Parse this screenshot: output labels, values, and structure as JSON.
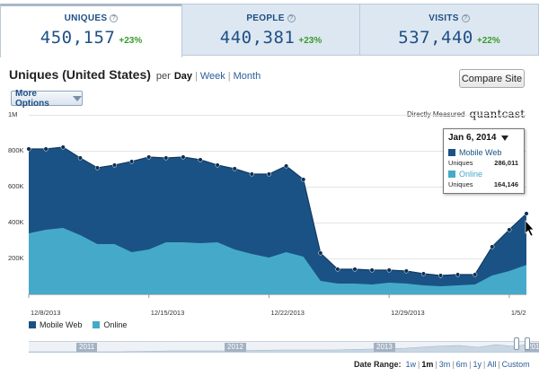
{
  "tabs": [
    {
      "label": "UNIQUES",
      "value": "450,157",
      "change": "+23%",
      "active": true
    },
    {
      "label": "PEOPLE",
      "value": "440,381",
      "change": "+23%",
      "active": false
    },
    {
      "label": "VISITS",
      "value": "537,440",
      "change": "+22%",
      "active": false
    }
  ],
  "header": {
    "title": "Uniques (United States)",
    "per": "per",
    "granularity": [
      "Day",
      "Week",
      "Month"
    ],
    "selected_granularity": "Day",
    "compare_button": "Compare Site",
    "more_options": "More Options",
    "directly_measured": "Directly Measured",
    "logo_text": "quantcast"
  },
  "chart_data": {
    "type": "area",
    "stacked": true,
    "y_tick_labels": [
      "1M",
      "800K",
      "600K",
      "400K",
      "200K"
    ],
    "y_ticks": [
      1000000,
      800000,
      600000,
      400000,
      200000
    ],
    "ylim": [
      0,
      1000000
    ],
    "x_tick_labels": [
      "12/8/2013",
      "12/15/2013",
      "12/22/2013",
      "12/29/2013",
      "1/5/2"
    ],
    "x": [
      "2013-12-08",
      "2013-12-09",
      "2013-12-10",
      "2013-12-11",
      "2013-12-12",
      "2013-12-13",
      "2013-12-14",
      "2013-12-15",
      "2013-12-16",
      "2013-12-17",
      "2013-12-18",
      "2013-12-19",
      "2013-12-20",
      "2013-12-21",
      "2013-12-22",
      "2013-12-23",
      "2013-12-24",
      "2013-12-25",
      "2013-12-26",
      "2013-12-27",
      "2013-12-28",
      "2013-12-29",
      "2013-12-30",
      "2013-12-31",
      "2014-01-01",
      "2014-01-02",
      "2014-01-03",
      "2014-01-04",
      "2014-01-05",
      "2014-01-06"
    ],
    "series": [
      {
        "name": "Online",
        "color": "#45aac9",
        "values": [
          340000,
          360000,
          370000,
          330000,
          280000,
          280000,
          235000,
          250000,
          290000,
          290000,
          285000,
          290000,
          250000,
          225000,
          205000,
          235000,
          210000,
          75000,
          60000,
          60000,
          55000,
          65000,
          60000,
          50000,
          45000,
          50000,
          55000,
          105000,
          130000,
          164146
        ]
      },
      {
        "name": "Mobile Web",
        "color": "#1b5286",
        "values": [
          470000,
          450000,
          450000,
          430000,
          425000,
          440000,
          505000,
          515000,
          470000,
          475000,
          465000,
          430000,
          450000,
          445000,
          465000,
          480000,
          430000,
          155000,
          80000,
          80000,
          80000,
          70000,
          70000,
          65000,
          60000,
          60000,
          55000,
          160000,
          230000,
          286011
        ]
      }
    ],
    "totals": [
      810000,
      810000,
      820000,
      760000,
      705000,
      720000,
      740000,
      765000,
      760000,
      765000,
      750000,
      720000,
      700000,
      670000,
      670000,
      715000,
      640000,
      230000,
      140000,
      140000,
      135000,
      135000,
      130000,
      115000,
      105000,
      110000,
      110000,
      265000,
      360000,
      450157
    ],
    "grid": true,
    "legend": "bottom-left"
  },
  "tooltip": {
    "date": "Jan 6, 2014",
    "rows": [
      {
        "label": "Mobile Web",
        "metric": "Uniques",
        "value": "286,011",
        "color": "#1b5286"
      },
      {
        "label": "Online",
        "metric": "Uniques",
        "value": "164,146",
        "color": "#45aac9"
      }
    ]
  },
  "legend": [
    {
      "label": "Mobile Web",
      "color": "#1b5286"
    },
    {
      "label": "Online",
      "color": "#45aac9"
    }
  ],
  "overview": {
    "years": [
      "2011",
      "2012",
      "2013",
      "201"
    ]
  },
  "date_range": {
    "label": "Date Range:",
    "options": [
      "1w",
      "1m",
      "3m",
      "6m",
      "1y",
      "All",
      "Custom"
    ]
  }
}
